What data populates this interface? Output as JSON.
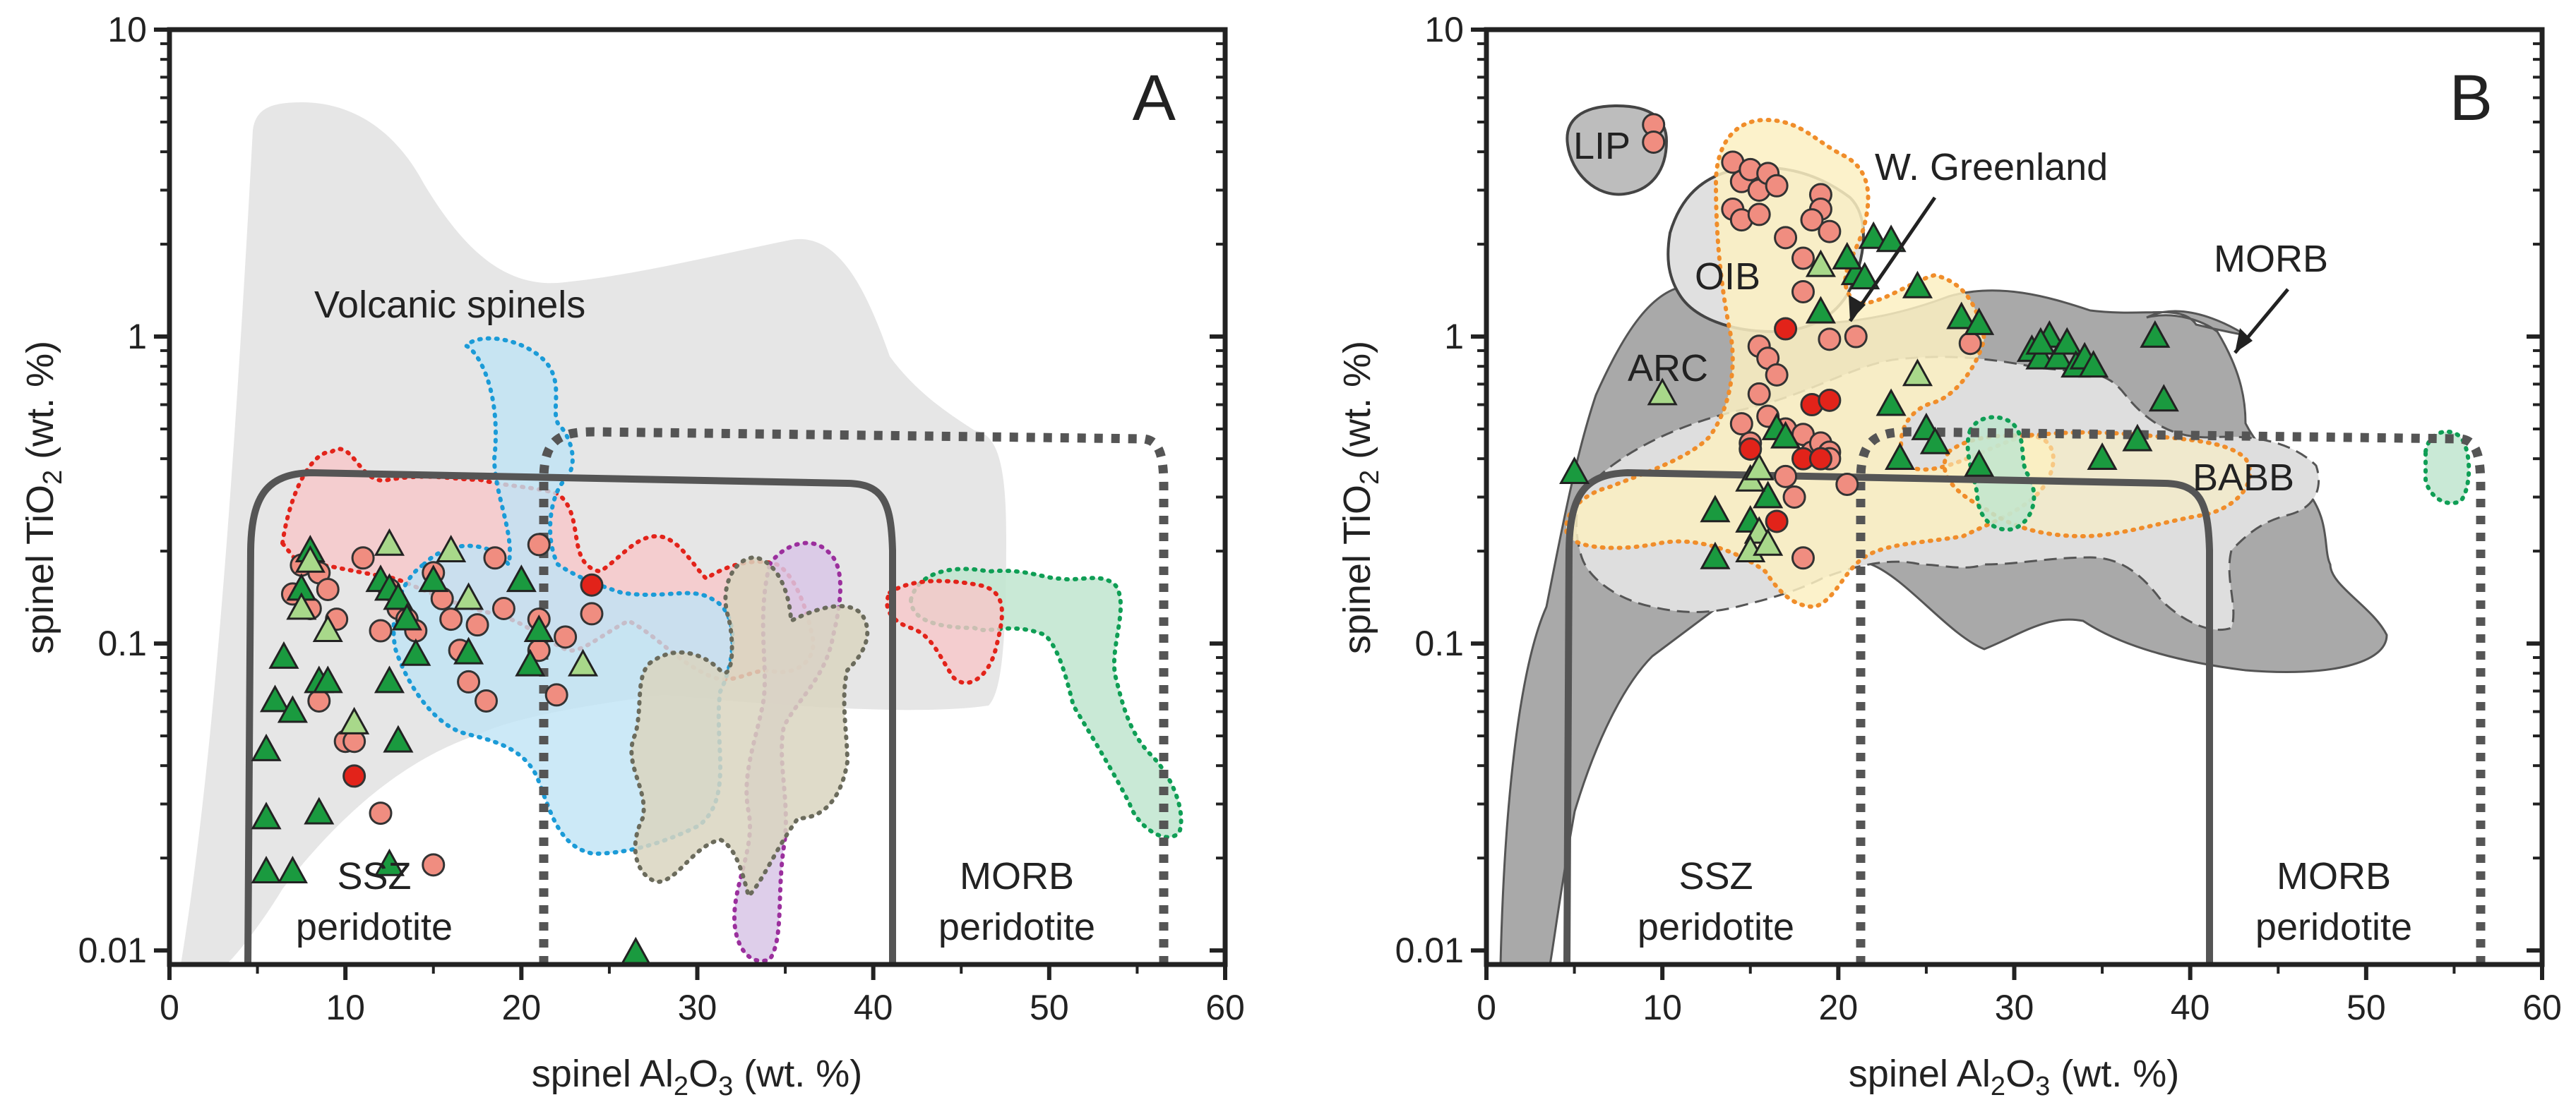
{
  "chart_data": [
    {
      "type": "scatter",
      "panel_label": "A",
      "xlabel": "spinel Al2O3 (wt. %)",
      "ylabel": "spinel TiO2 (wt. %)",
      "xlim": [
        0,
        60
      ],
      "ylim": [
        0.009,
        10
      ],
      "yscale": "log",
      "x_ticks": [
        "0",
        "10",
        "20",
        "30",
        "40",
        "50",
        "60"
      ],
      "y_ticks": [
        "0.01",
        "0.1",
        "1",
        "10"
      ],
      "annotations": {
        "volcanic": "Volcanic spinels",
        "ssz1": "SSZ",
        "ssz2": "peridotite",
        "morb1": "MORB",
        "morb2": "peridotite"
      },
      "series": [
        {
          "name": "circles",
          "color": "#f08d80",
          "points": [
            [
              7,
              0.145
            ],
            [
              7.5,
              0.18
            ],
            [
              8,
              0.13
            ],
            [
              8.5,
              0.17
            ],
            [
              9,
              0.15
            ],
            [
              9.5,
              0.12
            ],
            [
              8.5,
              0.065
            ],
            [
              10,
              0.048
            ],
            [
              10.5,
              0.048
            ],
            [
              11,
              0.19
            ],
            [
              12,
              0.11
            ],
            [
              12.5,
              0.15
            ],
            [
              13,
              0.13
            ],
            [
              13.5,
              0.12
            ],
            [
              14,
              0.11
            ],
            [
              12,
              0.028
            ],
            [
              15,
              0.17
            ],
            [
              15.5,
              0.14
            ],
            [
              16,
              0.12
            ],
            [
              16.5,
              0.095
            ],
            [
              17,
              0.075
            ],
            [
              17.5,
              0.115
            ],
            [
              18,
              0.065
            ],
            [
              18.5,
              0.19
            ],
            [
              19,
              0.13
            ],
            [
              21,
              0.21
            ],
            [
              21,
              0.12
            ],
            [
              21,
              0.095
            ],
            [
              22,
              0.068
            ],
            [
              22.5,
              0.105
            ],
            [
              24,
              0.125
            ],
            [
              15,
              0.019
            ]
          ]
        },
        {
          "name": "circles-red",
          "color": "#e2231a",
          "points": [
            [
              10.5,
              0.037
            ],
            [
              24,
              0.155
            ]
          ]
        },
        {
          "name": "triangles-dark",
          "color": "#1a9a3f",
          "points": [
            [
              5.5,
              0.018
            ],
            [
              5.5,
              0.027
            ],
            [
              5.5,
              0.045
            ],
            [
              6,
              0.065
            ],
            [
              6.5,
              0.09
            ],
            [
              7,
              0.018
            ],
            [
              7,
              0.06
            ],
            [
              7.5,
              0.15
            ],
            [
              8,
              0.2
            ],
            [
              8.5,
              0.075
            ],
            [
              9,
              0.075
            ],
            [
              8.5,
              0.028
            ],
            [
              12,
              0.16
            ],
            [
              12.5,
              0.15
            ],
            [
              13,
              0.14
            ],
            [
              13.5,
              0.12
            ],
            [
              12.5,
              0.075
            ],
            [
              13,
              0.048
            ],
            [
              14,
              0.092
            ],
            [
              15,
              0.16
            ],
            [
              17,
              0.093
            ],
            [
              20,
              0.16
            ],
            [
              20.5,
              0.085
            ],
            [
              21,
              0.11
            ],
            [
              12.5,
              0.019
            ],
            [
              26.5,
              0.0098
            ]
          ]
        },
        {
          "name": "triangles-light",
          "color": "#a8d88a",
          "points": [
            [
              7.5,
              0.13
            ],
            [
              8,
              0.185
            ],
            [
              9,
              0.11
            ],
            [
              10.5,
              0.055
            ],
            [
              12.5,
              0.21
            ],
            [
              16,
              0.2
            ],
            [
              17,
              0.14
            ],
            [
              23.5,
              0.085
            ]
          ]
        }
      ]
    },
    {
      "type": "scatter",
      "panel_label": "B",
      "xlabel": "spinel Al2O3 (wt. %)",
      "ylabel": "spinel TiO2 (wt. %)",
      "xlim": [
        0,
        60
      ],
      "ylim": [
        0.009,
        10
      ],
      "yscale": "log",
      "x_ticks": [
        "0",
        "10",
        "20",
        "30",
        "40",
        "50",
        "60"
      ],
      "y_ticks": [
        "0.01",
        "0.1",
        "1",
        "10"
      ],
      "annotations": {
        "lip": "LIP",
        "oib": "OIB",
        "arc": "ARC",
        "greenland": "W. Greenland",
        "morb": "MORB",
        "babb": "BABB",
        "ssz1": "SSZ",
        "ssz2": "peridotite",
        "morb1": "MORB",
        "morb2": "peridotite"
      },
      "series": [
        {
          "name": "circles",
          "color": "#f08d80",
          "points": [
            [
              9.5,
              4.9
            ],
            [
              9.5,
              4.3
            ],
            [
              14,
              3.7
            ],
            [
              14.5,
              3.2
            ],
            [
              15,
              3.5
            ],
            [
              15.5,
              3.0
            ],
            [
              16,
              3.4
            ],
            [
              16.5,
              3.1
            ],
            [
              14,
              2.6
            ],
            [
              14.5,
              2.4
            ],
            [
              15.5,
              2.5
            ],
            [
              19,
              2.9
            ],
            [
              19,
              2.6
            ],
            [
              18.5,
              2.4
            ],
            [
              19.5,
              2.2
            ],
            [
              17,
              2.1
            ],
            [
              18,
              1.8
            ],
            [
              18,
              1.4
            ],
            [
              21,
              1.0
            ],
            [
              19.5,
              0.98
            ],
            [
              15.5,
              0.93
            ],
            [
              16,
              0.85
            ],
            [
              16.5,
              0.75
            ],
            [
              15.5,
              0.65
            ],
            [
              16,
              0.55
            ],
            [
              17,
              0.5
            ],
            [
              14.5,
              0.52
            ],
            [
              15,
              0.45
            ],
            [
              18,
              0.48
            ],
            [
              18.5,
              0.42
            ],
            [
              19,
              0.45
            ],
            [
              19.5,
              0.42
            ],
            [
              17,
              0.35
            ],
            [
              17.5,
              0.3
            ],
            [
              20.5,
              0.33
            ],
            [
              19.5,
              0.4
            ],
            [
              18,
              0.19
            ],
            [
              27.5,
              0.95
            ]
          ]
        },
        {
          "name": "circles-red",
          "color": "#e2231a",
          "points": [
            [
              17,
              1.06
            ],
            [
              18.5,
              0.6
            ],
            [
              19.5,
              0.62
            ],
            [
              15,
              0.43
            ],
            [
              18,
              0.4
            ],
            [
              19,
              0.4
            ],
            [
              16.5,
              0.25
            ]
          ]
        },
        {
          "name": "triangles-dark",
          "color": "#1a9a3f",
          "points": [
            [
              5,
              0.36
            ],
            [
              13,
              0.27
            ],
            [
              13,
              0.19
            ],
            [
              15,
              0.25
            ],
            [
              16,
              0.3
            ],
            [
              16.5,
              0.5
            ],
            [
              17,
              0.47
            ],
            [
              19,
              1.2
            ],
            [
              21,
              1.6
            ],
            [
              20.5,
              1.8
            ],
            [
              22,
              2.1
            ],
            [
              23,
              2.05
            ],
            [
              21.5,
              1.55
            ],
            [
              24.5,
              1.45
            ],
            [
              23,
              0.6
            ],
            [
              23.5,
              0.4
            ],
            [
              25,
              0.5
            ],
            [
              27,
              1.15
            ],
            [
              28,
              1.1
            ],
            [
              31,
              0.9
            ],
            [
              31.5,
              0.85
            ],
            [
              32,
              1.0
            ],
            [
              32.5,
              0.85
            ],
            [
              33,
              0.95
            ],
            [
              33.5,
              0.8
            ],
            [
              34,
              0.85
            ],
            [
              34.5,
              0.8
            ],
            [
              31.5,
              0.95
            ],
            [
              38,
              1.0
            ],
            [
              38.5,
              0.62
            ],
            [
              37,
              0.46
            ],
            [
              35,
              0.4
            ],
            [
              28,
              0.38
            ],
            [
              25.5,
              0.45
            ]
          ]
        },
        {
          "name": "triangles-light",
          "color": "#a8d88a",
          "points": [
            [
              10,
              0.65
            ],
            [
              15,
              0.34
            ],
            [
              15.5,
              0.23
            ],
            [
              15,
              0.2
            ],
            [
              16,
              0.21
            ],
            [
              19,
              1.7
            ],
            [
              24.5,
              0.75
            ],
            [
              15.5,
              0.37
            ]
          ]
        }
      ]
    }
  ]
}
